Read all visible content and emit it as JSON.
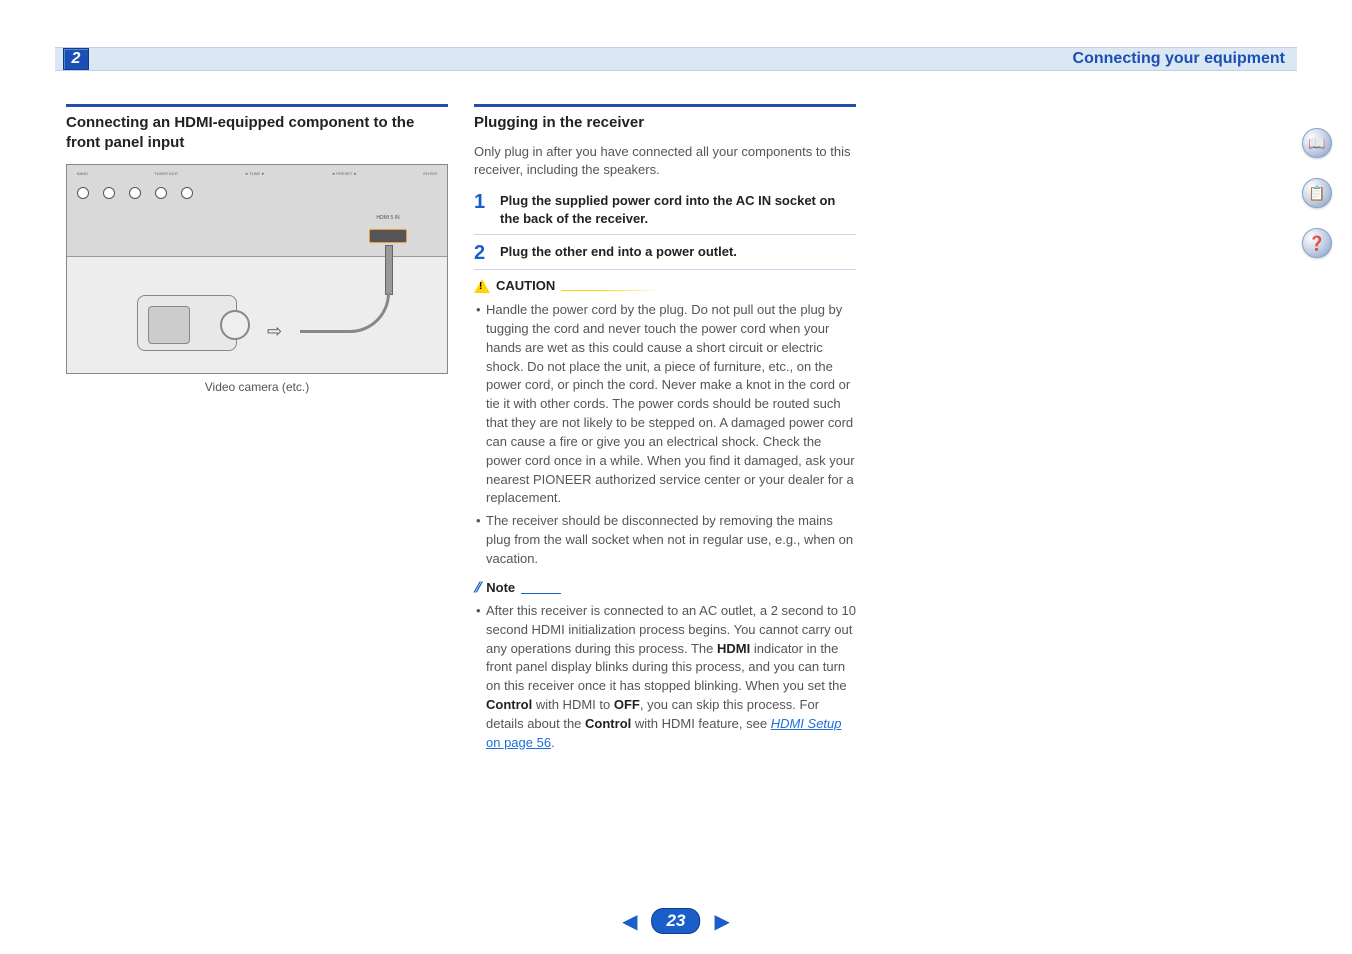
{
  "header": {
    "chapter_number": "2",
    "title": "Connecting your equipment"
  },
  "column_left": {
    "heading": "Connecting an HDMI-equipped component to the front panel input",
    "diagram_caption": "Video camera (etc.)"
  },
  "column_right": {
    "heading": "Plugging in the receiver",
    "intro": "Only plug in after you have connected all your components to this receiver, including the speakers.",
    "steps": [
      {
        "num": "1",
        "text": "Plug the supplied power cord into the AC IN socket on the back of the receiver."
      },
      {
        "num": "2",
        "text": "Plug the other end into a power outlet."
      }
    ],
    "caution_label": "CAUTION",
    "caution_bullets": [
      "Handle the power cord by the plug. Do not pull out the plug by tugging the cord and never touch the power cord when your hands are wet as this could cause a short circuit or electric shock. Do not place the unit, a piece of furniture, etc., on the power cord, or pinch the cord. Never make a knot in the cord or tie it with other cords. The power cords should be routed such that they are not likely to be stepped on. A damaged power cord can cause a fire or give you an electrical shock. Check the power cord once in a while. When you find it damaged, ask your nearest PIONEER authorized service center or your dealer for a replacement.",
      "The receiver should be disconnected by removing the mains plug from the wall socket when not in regular use, e.g., when on vacation."
    ],
    "note_label": "Note",
    "note_text_1": "After this receiver is connected to an AC outlet, a 2 second to 10 second HDMI initialization process begins. You cannot carry out any operations during this process. The ",
    "note_bold_1": "HDMI",
    "note_text_2": " indicator in the front panel display blinks during this process, and you can turn on this receiver once it has stopped blinking. When you set the ",
    "note_bold_2": "Control",
    "note_text_3": " with HDMI to ",
    "note_bold_3": "OFF",
    "note_text_4": ", you can skip this process. For details about the ",
    "note_bold_4": "Control",
    "note_text_5": " with HDMI feature, see ",
    "note_link_italic": "HDMI Setup",
    "note_link_rest": " on page 56",
    "note_text_6": "."
  },
  "sidebar": {
    "icons": [
      "📖",
      "📋",
      "❓"
    ]
  },
  "pager": {
    "page": "23"
  },
  "colors": {
    "accent": "#1a4fb5",
    "header_bg": "#dce7f4",
    "text_muted": "#555555",
    "link": "#1e6fd9",
    "caution": "#ffd400"
  }
}
